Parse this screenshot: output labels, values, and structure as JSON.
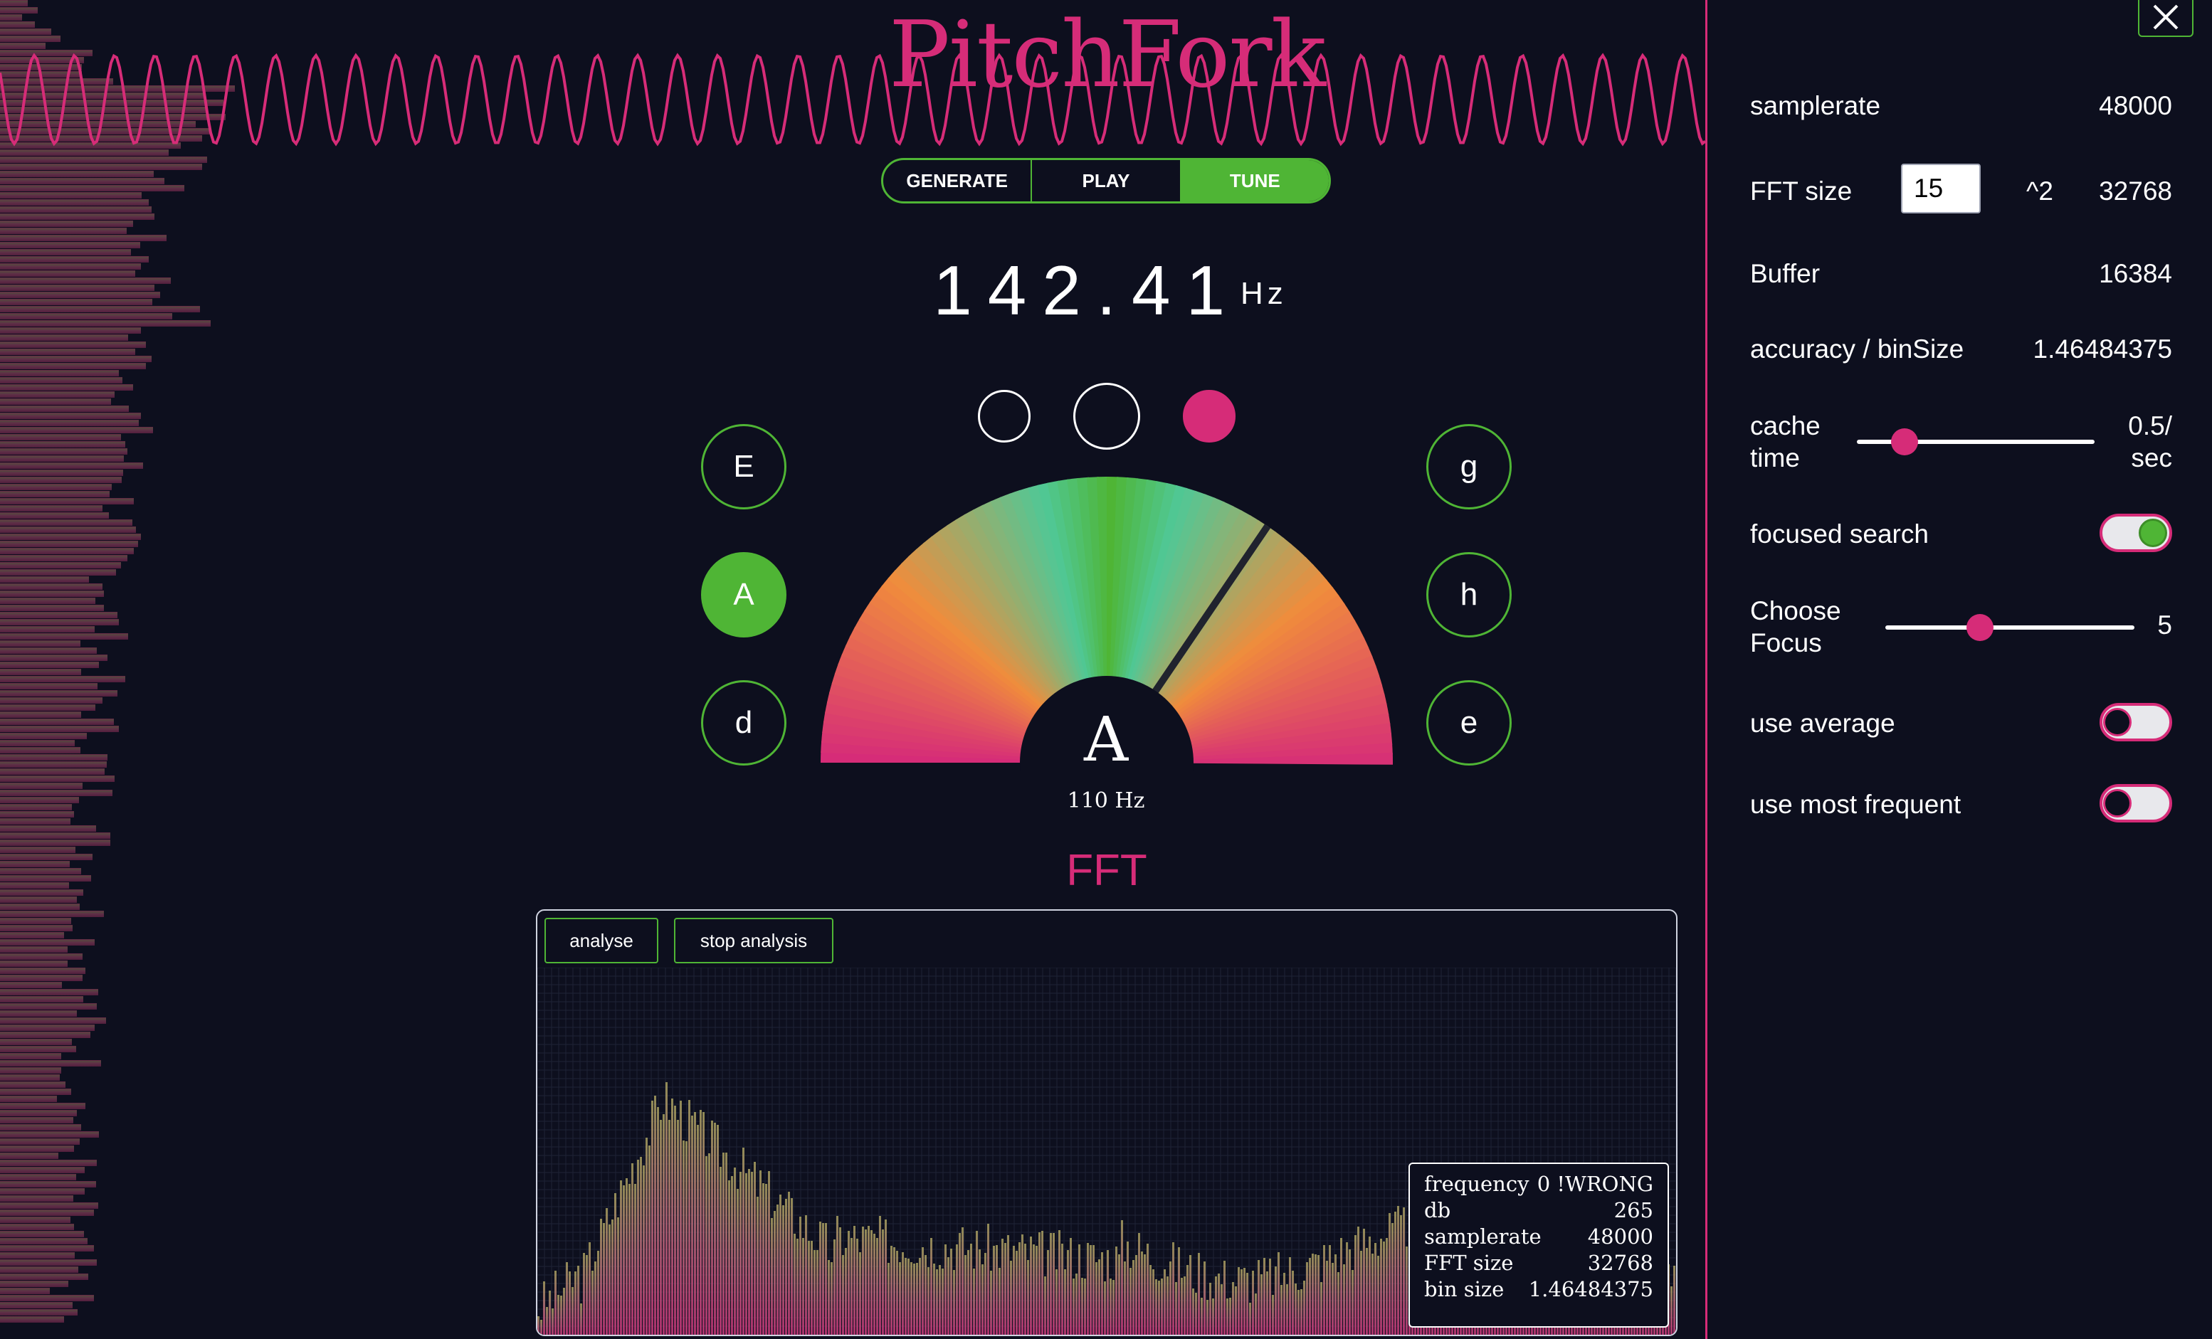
{
  "app": {
    "title": "PitchFork"
  },
  "modes": [
    {
      "label": "GENERATE",
      "active": false
    },
    {
      "label": "PLAY",
      "active": false
    },
    {
      "label": "TUNE",
      "active": true
    }
  ],
  "tuner": {
    "frequency": "142.41",
    "unit": "Hz",
    "note": "A",
    "note_freq": "110 Hz",
    "strings_left": [
      {
        "label": "E",
        "active": false
      },
      {
        "label": "A",
        "active": true
      },
      {
        "label": "d",
        "active": false
      }
    ],
    "strings_right": [
      {
        "label": "g"
      },
      {
        "label": "h"
      },
      {
        "label": "e"
      }
    ],
    "needle_deviation": 0.38
  },
  "fft": {
    "title": "FFT",
    "analyse_label": "analyse",
    "stop_label": "stop analysis",
    "info": {
      "frequency_label": "frequency",
      "frequency_value": "0 !WRONG",
      "db_label": "db",
      "db_value": "265",
      "samplerate_label": "samplerate",
      "samplerate_value": "48000",
      "fftsize_label": "FFT size",
      "fftsize_value": "32768",
      "binsize_label": "bin size",
      "binsize_value": "1.46484375"
    }
  },
  "settings": {
    "samplerate_label": "samplerate",
    "samplerate_value": "48000",
    "fftsize_label": "FFT size",
    "fftsize_input": "15",
    "fftsize_power": "^2",
    "fftsize_value": "32768",
    "buffer_label": "Buffer",
    "buffer_value": "16384",
    "accuracy_label": "accuracy / binSize",
    "accuracy_value": "1.46484375",
    "cache_label_1": "cache",
    "cache_label_2": "time",
    "cache_value_1": "0.5/",
    "cache_value_2": "sec",
    "cache_level": 0.2,
    "focused_search_label": "focused search",
    "focused_search_on": true,
    "focus_label_1": "Choose",
    "focus_label_2": "Focus",
    "focus_value": "5",
    "focus_level": 0.38,
    "use_average_label": "use average",
    "use_average_on": false,
    "use_most_frequent_label": "use most frequent",
    "use_most_frequent_on": false
  },
  "colors": {
    "accent": "#d62c78",
    "green": "#4fb535",
    "background": "#0d0f1e"
  },
  "icons": {
    "close": "close-icon"
  }
}
